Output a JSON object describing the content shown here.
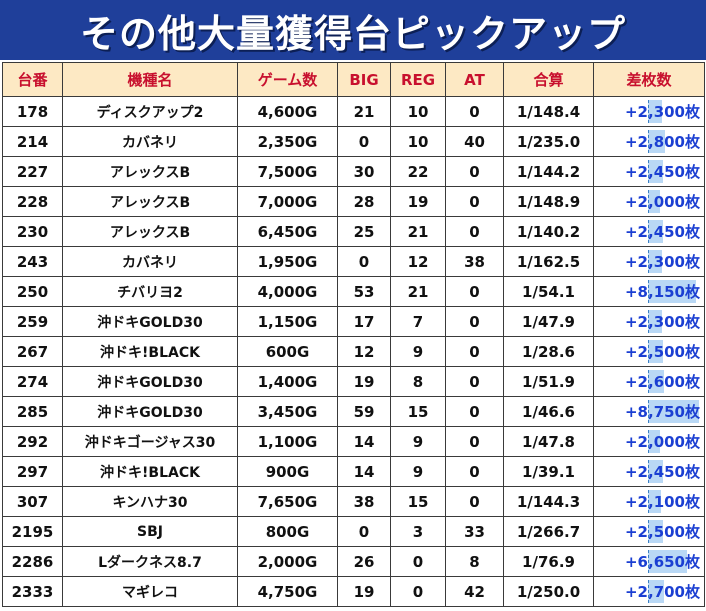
{
  "title": "その他大量獲得台ピックアップ",
  "headers": [
    "台番",
    "機種名",
    "ゲーム数",
    "BIG",
    "REG",
    "AT",
    "合算",
    "差枚数"
  ],
  "rows": [
    {
      "no": "178",
      "machine": "ディスクアップ2",
      "games": "4,600G",
      "big": "21",
      "reg": "10",
      "at": "0",
      "gassan": "1/148.4",
      "diff": "+2,300枚",
      "diff_value": 2300
    },
    {
      "no": "214",
      "machine": "カバネリ",
      "games": "2,350G",
      "big": "0",
      "reg": "10",
      "at": "40",
      "gassan": "1/235.0",
      "diff": "+2,800枚",
      "diff_value": 2800
    },
    {
      "no": "227",
      "machine": "アレックスB",
      "games": "7,500G",
      "big": "30",
      "reg": "22",
      "at": "0",
      "gassan": "1/144.2",
      "diff": "+2,450枚",
      "diff_value": 2450
    },
    {
      "no": "228",
      "machine": "アレックスB",
      "games": "7,000G",
      "big": "28",
      "reg": "19",
      "at": "0",
      "gassan": "1/148.9",
      "diff": "+2,000枚",
      "diff_value": 2000
    },
    {
      "no": "230",
      "machine": "アレックスB",
      "games": "6,450G",
      "big": "25",
      "reg": "21",
      "at": "0",
      "gassan": "1/140.2",
      "diff": "+2,450枚",
      "diff_value": 2450
    },
    {
      "no": "243",
      "machine": "カバネリ",
      "games": "1,950G",
      "big": "0",
      "reg": "12",
      "at": "38",
      "gassan": "1/162.5",
      "diff": "+2,300枚",
      "diff_value": 2300
    },
    {
      "no": "250",
      "machine": "チバリヨ2",
      "games": "4,000G",
      "big": "53",
      "reg": "21",
      "at": "0",
      "gassan": "1/54.1",
      "diff": "+8,150枚",
      "diff_value": 8150
    },
    {
      "no": "259",
      "machine": "沖ドキGOLD30",
      "games": "1,150G",
      "big": "17",
      "reg": "7",
      "at": "0",
      "gassan": "1/47.9",
      "diff": "+2,300枚",
      "diff_value": 2300
    },
    {
      "no": "267",
      "machine": "沖ドキ!BLACK",
      "games": "600G",
      "big": "12",
      "reg": "9",
      "at": "0",
      "gassan": "1/28.6",
      "diff": "+2,500枚",
      "diff_value": 2500
    },
    {
      "no": "274",
      "machine": "沖ドキGOLD30",
      "games": "1,400G",
      "big": "19",
      "reg": "8",
      "at": "0",
      "gassan": "1/51.9",
      "diff": "+2,600枚",
      "diff_value": 2600
    },
    {
      "no": "285",
      "machine": "沖ドキGOLD30",
      "games": "3,450G",
      "big": "59",
      "reg": "15",
      "at": "0",
      "gassan": "1/46.6",
      "diff": "+8,750枚",
      "diff_value": 8750
    },
    {
      "no": "292",
      "machine": "沖ドキゴージャス30",
      "games": "1,100G",
      "big": "14",
      "reg": "9",
      "at": "0",
      "gassan": "1/47.8",
      "diff": "+2,000枚",
      "diff_value": 2000
    },
    {
      "no": "297",
      "machine": "沖ドキ!BLACK",
      "games": "900G",
      "big": "14",
      "reg": "9",
      "at": "0",
      "gassan": "1/39.1",
      "diff": "+2,450枚",
      "diff_value": 2450
    },
    {
      "no": "307",
      "machine": "キンハナ30",
      "games": "7,650G",
      "big": "38",
      "reg": "15",
      "at": "0",
      "gassan": "1/144.3",
      "diff": "+2,100枚",
      "diff_value": 2100
    },
    {
      "no": "2195",
      "machine": "SBJ",
      "games": "800G",
      "big": "0",
      "reg": "3",
      "at": "33",
      "gassan": "1/266.7",
      "diff": "+2,500枚",
      "diff_value": 2500
    },
    {
      "no": "2286",
      "machine": "Lダークネス8.7",
      "games": "2,000G",
      "big": "26",
      "reg": "0",
      "at": "8",
      "gassan": "1/76.9",
      "diff": "+6,650枚",
      "diff_value": 6650
    },
    {
      "no": "2333",
      "machine": "マギレコ",
      "games": "4,750G",
      "big": "19",
      "reg": "0",
      "at": "42",
      "gassan": "1/250.0",
      "diff": "+2,700枚",
      "diff_value": 2700
    }
  ],
  "colors": {
    "title_bg": "#1f3f9a",
    "header_bg": "#fde9c4",
    "header_text": "#c8102e",
    "diff_text": "#1b3fd2",
    "diff_bar": "#b9d8f5"
  },
  "diff_bar_max": 8750
}
